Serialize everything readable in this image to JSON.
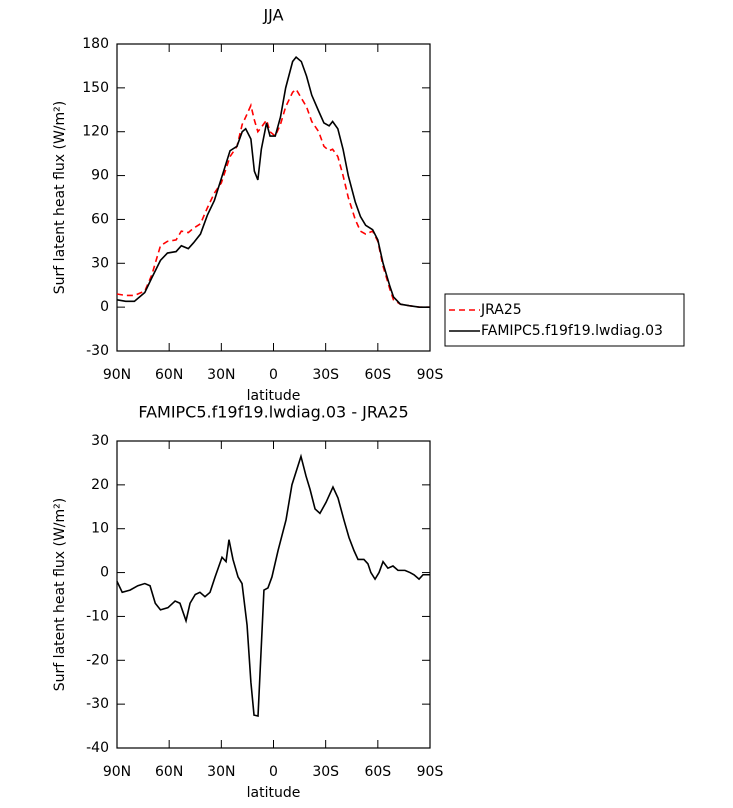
{
  "chart_data": [
    {
      "type": "line",
      "title": "JJA",
      "xlabel": "latitude",
      "ylabel": "Surf latent heat flux (W/m²)",
      "xlim": [
        90,
        -90
      ],
      "xticks": [
        {
          "value": 90,
          "label": "90N"
        },
        {
          "value": 60,
          "label": "60N"
        },
        {
          "value": 30,
          "label": "30N"
        },
        0,
        {
          "value": -30,
          "label": "30S"
        },
        {
          "value": -60,
          "label": "60S"
        },
        {
          "value": -90,
          "label": "90S"
        }
      ],
      "ylim": [
        -30,
        180
      ],
      "yticks": [
        -30,
        0,
        30,
        60,
        90,
        120,
        150,
        180
      ],
      "legend": "right",
      "x": [
        90,
        85,
        80,
        74,
        70,
        65,
        61,
        56,
        53,
        49,
        46,
        42,
        38,
        34,
        30,
        25,
        21,
        18,
        16,
        13,
        11,
        9,
        7,
        4,
        2,
        -1,
        -4,
        -7,
        -11,
        -13,
        -16,
        -19,
        -22,
        -26,
        -29,
        -32,
        -34,
        -37,
        -40,
        -43,
        -47,
        -50,
        -53,
        -57,
        -60,
        -63,
        -67,
        -69,
        -73,
        -78,
        -84,
        -90
      ],
      "series": [
        {
          "name": "JRA25",
          "color": "#ff0000",
          "line_style": "dashed",
          "values": [
            9,
            8,
            8,
            11,
            22,
            42,
            45,
            46,
            52,
            51,
            54,
            57,
            68,
            78,
            85,
            103,
            110,
            125,
            130,
            138,
            128,
            120,
            123,
            128,
            120,
            117,
            125,
            137,
            147,
            149,
            143,
            137,
            127,
            120,
            110,
            107,
            108,
            103,
            90,
            75,
            60,
            52,
            50,
            52,
            45,
            28,
            12,
            5,
            2,
            1,
            0,
            0
          ]
        },
        {
          "name": "FAMIPC5.f19f19.lwdiag.03",
          "color": "#000000",
          "line_style": "solid",
          "values": [
            5,
            4,
            4,
            10,
            20,
            32,
            37,
            38,
            42,
            40,
            44,
            50,
            63,
            73,
            88,
            107,
            110,
            120,
            122,
            115,
            93,
            87,
            108,
            126,
            117,
            117,
            130,
            150,
            168,
            171,
            168,
            158,
            145,
            134,
            126,
            124,
            127,
            122,
            108,
            90,
            72,
            62,
            56,
            53,
            46,
            30,
            14,
            7,
            2,
            1,
            0,
            0
          ]
        }
      ]
    },
    {
      "type": "line",
      "title": "FAMIPC5.f19f19.lwdiag.03 - JRA25",
      "xlabel": "latitude",
      "ylabel": "Surf latent heat flux (W/m²)",
      "xlim": [
        90,
        -90
      ],
      "xticks": [
        {
          "value": 90,
          "label": "90N"
        },
        {
          "value": 60,
          "label": "60N"
        },
        {
          "value": 30,
          "label": "30N"
        },
        0,
        {
          "value": -30,
          "label": "30S"
        },
        {
          "value": -60,
          "label": "60S"
        },
        {
          "value": -90,
          "label": "90S"
        }
      ],
      "ylim": [
        -40,
        30
      ],
      "yticks": [
        -40,
        -30,
        -20,
        -10,
        0,
        10,
        20,
        30
      ],
      "color": "#000000",
      "x": [
        90,
        87,
        82.5,
        78,
        74,
        71,
        68,
        65,
        60.7,
        56.6,
        53.8,
        50.3,
        48,
        45,
        42.3,
        39.4,
        36.5,
        33.6,
        29.6,
        27.3,
        25.6,
        23.3,
        20.4,
        18.1,
        15.2,
        13,
        11.2,
        8.9,
        5.5,
        3.2,
        0.9,
        -2.6,
        -7.2,
        -10.6,
        -15.8,
        -18.7,
        -21,
        -23.9,
        -26.7,
        -30.2,
        -34.2,
        -37.1,
        -40.5,
        -43.4,
        -46.3,
        -48.6,
        -52,
        -54.3,
        -56,
        -58.4,
        -60.7,
        -63,
        -65.8,
        -68.7,
        -71.6,
        -75.6,
        -78.5,
        -80.8,
        -83.7,
        -86,
        -90
      ],
      "values": [
        -2,
        -4.5,
        -4,
        -3,
        -2.5,
        -3,
        -7,
        -8.5,
        -8,
        -6.5,
        -7,
        -11,
        -7,
        -5,
        -4.5,
        -5.5,
        -4.5,
        -1,
        3.5,
        2.5,
        7.5,
        3,
        -1,
        -2.5,
        -12,
        -25,
        -32.5,
        -32.7,
        -4,
        -3.5,
        -1,
        5,
        12,
        20,
        26.5,
        22,
        19,
        14.5,
        13.5,
        16,
        19.5,
        17,
        12,
        8,
        5,
        3,
        3,
        2,
        0,
        -1.5,
        0,
        2.5,
        1,
        1.5,
        0.5,
        0.5,
        0,
        -0.5,
        -1.5,
        -0.5,
        -0.5
      ]
    }
  ]
}
